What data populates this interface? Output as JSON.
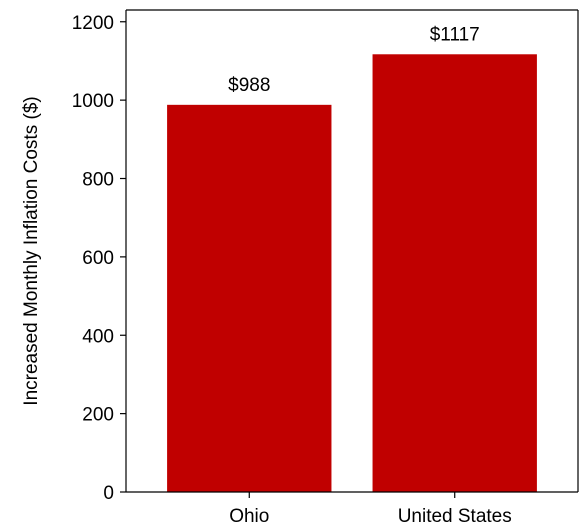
{
  "chart_data": {
    "type": "bar",
    "categories": [
      "Ohio",
      "United States"
    ],
    "values": [
      988,
      1117
    ],
    "data_labels": [
      "$988",
      "$1117"
    ],
    "title": "",
    "xlabel": "",
    "ylabel": "Increased Monthly Inflation Costs ($)",
    "ylim": [
      0,
      1230
    ],
    "yticks": [
      0,
      200,
      400,
      600,
      800,
      1000,
      1200
    ],
    "ytick_labels": [
      "0",
      "200",
      "400",
      "600",
      "800",
      "1000",
      "1200"
    ],
    "grid": false,
    "bar_color": "#c00000"
  }
}
